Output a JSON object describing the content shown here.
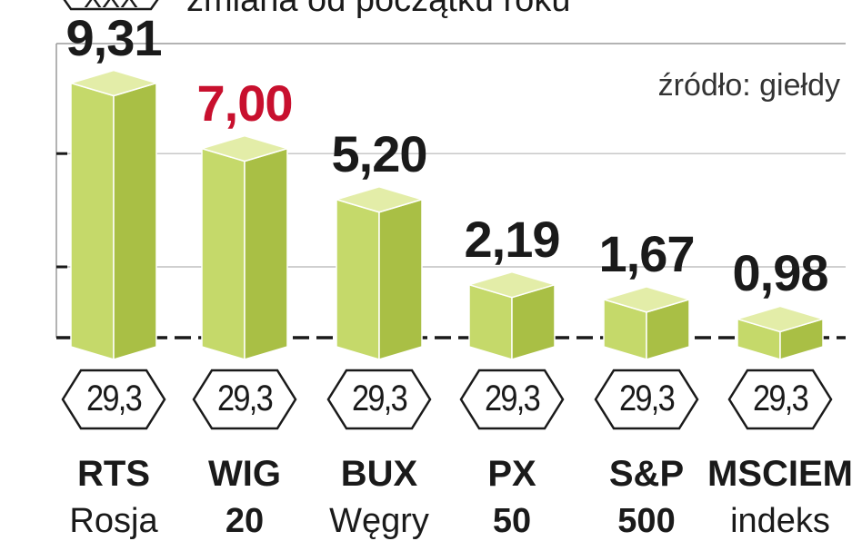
{
  "header": {
    "badge": "XXX",
    "subtitle": "zmiana od początku roku"
  },
  "source": "źródło: giełdy",
  "chart_data": {
    "type": "bar",
    "title": "",
    "subtitle": "zmiana od początku roku",
    "source": "źródło: giełdy",
    "categories": [
      "RTS Rosja",
      "WIG 20",
      "BUX Węgry",
      "PX 50",
      "S&P 500",
      "MSCIEM indeks"
    ],
    "values": [
      9.31,
      7.0,
      5.2,
      2.19,
      1.67,
      0.98
    ],
    "value_labels": [
      "9,31",
      "7,00",
      "5,20",
      "2,19",
      "1,67",
      "0,98"
    ],
    "highlight_index": 1,
    "highlight_color": "#c8102e",
    "bar_colors": {
      "front": "#c5d96a",
      "side": "#a9bf45",
      "top": "#e3eda8"
    },
    "ylim": [
      0,
      10
    ],
    "grid": true,
    "legend": "none"
  },
  "bars": [
    {
      "value_label": "9,31",
      "badge": "29,3",
      "name": "RTS",
      "sub": "Rosja",
      "sub_bold": false,
      "highlight": false
    },
    {
      "value_label": "7,00",
      "badge": "29,3",
      "name": "WIG",
      "sub": "20",
      "sub_bold": true,
      "highlight": true
    },
    {
      "value_label": "5,20",
      "badge": "29,3",
      "name": "BUX",
      "sub": "Węgry",
      "sub_bold": false,
      "highlight": false
    },
    {
      "value_label": "2,19",
      "badge": "29,3",
      "name": "PX",
      "sub": "50",
      "sub_bold": true,
      "highlight": false
    },
    {
      "value_label": "1,67",
      "badge": "29,3",
      "name": "S&P",
      "sub": "500",
      "sub_bold": true,
      "highlight": false
    },
    {
      "value_label": "0,98",
      "badge": "29,3",
      "name": "MSCIEM",
      "sub": "indeks",
      "sub_bold": false,
      "highlight": false
    }
  ]
}
